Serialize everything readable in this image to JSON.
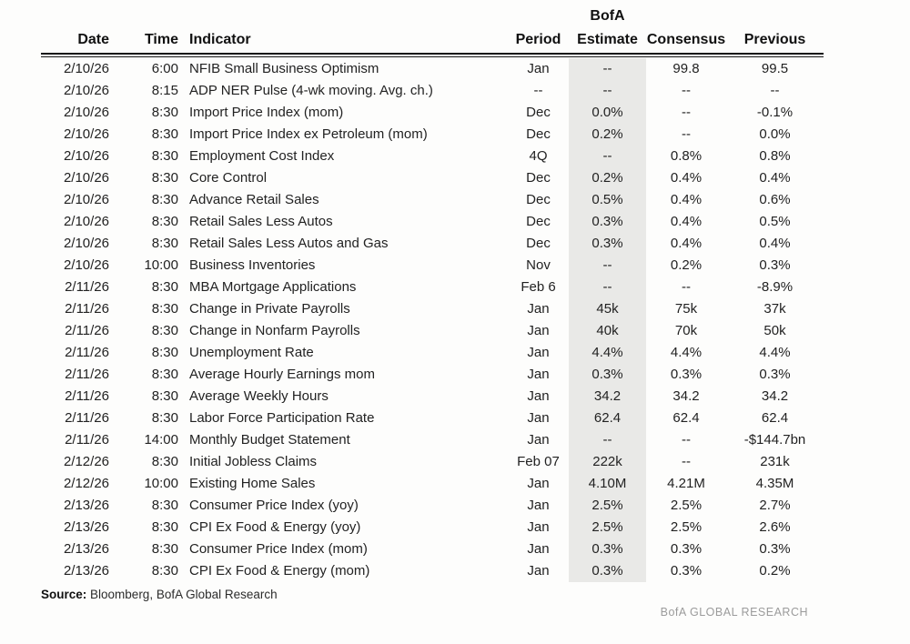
{
  "header": {
    "estimate_overline": "BofA",
    "columns": {
      "date": "Date",
      "time": "Time",
      "indicator": "Indicator",
      "period": "Period",
      "estimate": "Estimate",
      "consensus": "Consensus",
      "previous": "Previous"
    }
  },
  "rows": [
    [
      "2/10/26",
      "6:00",
      "NFIB Small Business Optimism",
      "Jan",
      "--",
      "99.8",
      "99.5"
    ],
    [
      "2/10/26",
      "8:15",
      "ADP NER Pulse (4-wk moving. Avg. ch.)",
      "--",
      "--",
      "--",
      "--"
    ],
    [
      "2/10/26",
      "8:30",
      "Import Price Index (mom)",
      "Dec",
      "0.0%",
      "--",
      "-0.1%"
    ],
    [
      "2/10/26",
      "8:30",
      "Import Price Index ex Petroleum (mom)",
      "Dec",
      "0.2%",
      "--",
      "0.0%"
    ],
    [
      "2/10/26",
      "8:30",
      "Employment Cost Index",
      "4Q",
      "--",
      "0.8%",
      "0.8%"
    ],
    [
      "2/10/26",
      "8:30",
      "Core Control",
      "Dec",
      "0.2%",
      "0.4%",
      "0.4%"
    ],
    [
      "2/10/26",
      "8:30",
      "Advance Retail Sales",
      "Dec",
      "0.5%",
      "0.4%",
      "0.6%"
    ],
    [
      "2/10/26",
      "8:30",
      "Retail Sales Less Autos",
      "Dec",
      "0.3%",
      "0.4%",
      "0.5%"
    ],
    [
      "2/10/26",
      "8:30",
      "Retail Sales Less Autos and Gas",
      "Dec",
      "0.3%",
      "0.4%",
      "0.4%"
    ],
    [
      "2/10/26",
      "10:00",
      "Business Inventories",
      "Nov",
      "--",
      "0.2%",
      "0.3%"
    ],
    [
      "2/11/26",
      "8:30",
      "MBA Mortgage Applications",
      "Feb 6",
      "--",
      "--",
      "-8.9%"
    ],
    [
      "2/11/26",
      "8:30",
      "Change in Private Payrolls",
      "Jan",
      "45k",
      "75k",
      "37k"
    ],
    [
      "2/11/26",
      "8:30",
      "Change in Nonfarm Payrolls",
      "Jan",
      "40k",
      "70k",
      "50k"
    ],
    [
      "2/11/26",
      "8:30",
      "Unemployment Rate",
      "Jan",
      "4.4%",
      "4.4%",
      "4.4%"
    ],
    [
      "2/11/26",
      "8:30",
      "Average Hourly Earnings mom",
      "Jan",
      "0.3%",
      "0.3%",
      "0.3%"
    ],
    [
      "2/11/26",
      "8:30",
      "Average Weekly Hours",
      "Jan",
      "34.2",
      "34.2",
      "34.2"
    ],
    [
      "2/11/26",
      "8:30",
      "Labor Force Participation Rate",
      "Jan",
      "62.4",
      "62.4",
      "62.4"
    ],
    [
      "2/11/26",
      "14:00",
      "Monthly Budget Statement",
      "Jan",
      "--",
      "--",
      "-$144.7bn"
    ],
    [
      "2/12/26",
      "8:30",
      "Initial Jobless Claims",
      "Feb 07",
      "222k",
      "--",
      "231k"
    ],
    [
      "2/12/26",
      "10:00",
      "Existing Home Sales",
      "Jan",
      "4.10M",
      "4.21M",
      "4.35M"
    ],
    [
      "2/13/26",
      "8:30",
      "Consumer Price Index (yoy)",
      "Jan",
      "2.5%",
      "2.5%",
      "2.7%"
    ],
    [
      "2/13/26",
      "8:30",
      "CPI Ex Food & Energy (yoy)",
      "Jan",
      "2.5%",
      "2.5%",
      "2.6%"
    ],
    [
      "2/13/26",
      "8:30",
      "Consumer Price Index (mom)",
      "Jan",
      "0.3%",
      "0.3%",
      "0.3%"
    ],
    [
      "2/13/26",
      "8:30",
      "CPI Ex Food & Energy (mom)",
      "Jan",
      "0.3%",
      "0.3%",
      "0.2%"
    ]
  ],
  "footer": {
    "source_label": "Source:",
    "source_text": "Bloomberg, BofA Global Research",
    "brand": "BofA GLOBAL RESEARCH"
  },
  "colors": {
    "estimate_band": "#e9e9e7",
    "text": "#222222",
    "header_text": "#111111",
    "rule": "#151515",
    "brand_gray": "#9b9b9b",
    "page_bg": "#fdfdfc"
  }
}
